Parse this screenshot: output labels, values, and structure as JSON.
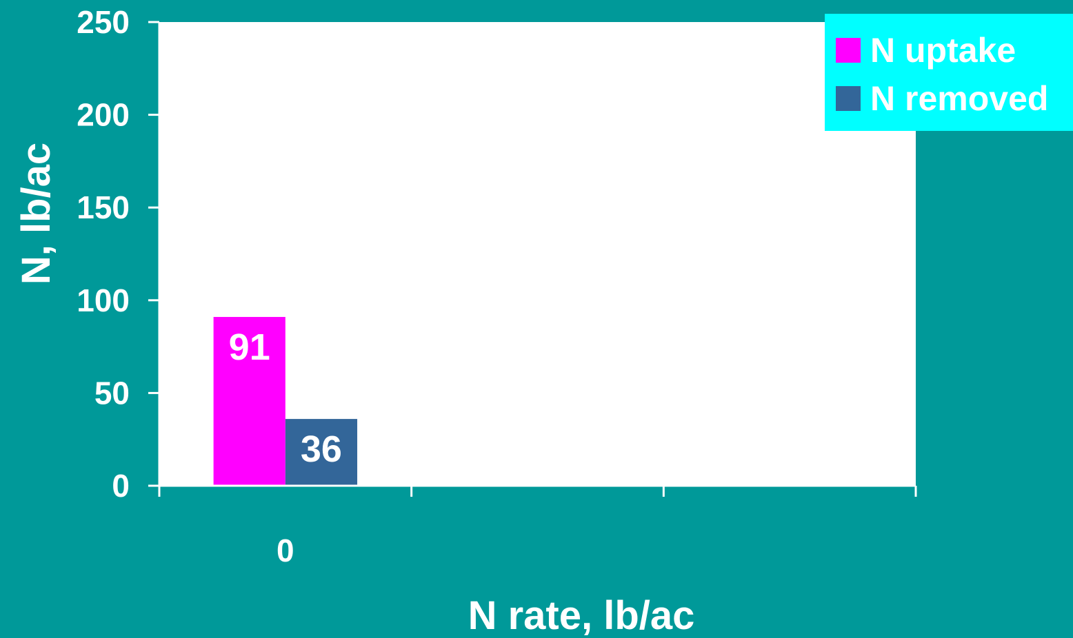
{
  "chart_data": {
    "type": "bar",
    "categories": [
      "0",
      "",
      ""
    ],
    "series": [
      {
        "name": "N uptake",
        "values": [
          91,
          null,
          null
        ],
        "color": "#ff00ff"
      },
      {
        "name": "N removed",
        "values": [
          36,
          null,
          null
        ],
        "color": "#336699"
      }
    ],
    "data_labels": [
      "91",
      "36"
    ],
    "xlabel": "N rate, lb/ac",
    "ylabel": "N, lb/ac",
    "ylim": [
      0,
      250
    ],
    "yticks": [
      0,
      50,
      100,
      150,
      200,
      250
    ],
    "legend_position": "top-right",
    "grid": false
  },
  "colors": {
    "background": "#009999",
    "plot_area": "#ffffff",
    "axis": "#ffffff",
    "legend_background": "#00ffff"
  }
}
